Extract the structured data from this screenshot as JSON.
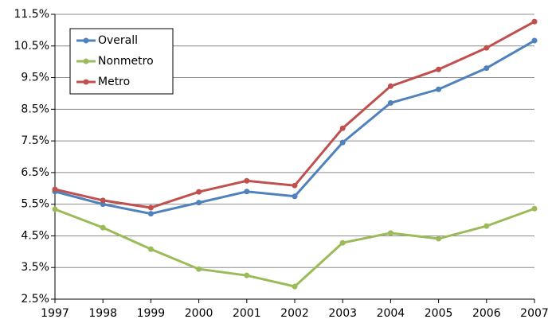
{
  "chart_data": {
    "type": "line",
    "x": [
      1997,
      1998,
      1999,
      2000,
      2001,
      2002,
      2003,
      2004,
      2005,
      2006,
      2007
    ],
    "xlim": [
      1997,
      2007
    ],
    "xticks": [
      1997,
      1998,
      1999,
      2000,
      2001,
      2002,
      2003,
      2004,
      2005,
      2006,
      2007
    ],
    "ylim": [
      2.5,
      11.5
    ],
    "yticks": [
      {
        "value": 2.5,
        "label": "2.5%"
      },
      {
        "value": 3.5,
        "label": "3.5%"
      },
      {
        "value": 4.5,
        "label": "4.5%"
      },
      {
        "value": 5.5,
        "label": "5.5%"
      },
      {
        "value": 6.5,
        "label": "6.5%"
      },
      {
        "value": 7.5,
        "label": "7.5%"
      },
      {
        "value": 8.5,
        "label": "8.5%"
      },
      {
        "value": 9.5,
        "label": "9.5%"
      },
      {
        "value": 10.5,
        "label": "10.5%"
      },
      {
        "value": 11.5,
        "label": "11.5%"
      }
    ],
    "grid": true,
    "legend": "upper-left",
    "series": [
      {
        "name": "Overall",
        "color": "#4f81bd",
        "values": [
          5.9,
          5.5,
          5.2,
          5.55,
          5.9,
          5.75,
          7.45,
          8.7,
          9.13,
          9.8,
          10.67
        ]
      },
      {
        "name": "Nonmetro",
        "color": "#9bbb59",
        "values": [
          5.34,
          4.76,
          4.08,
          3.45,
          3.25,
          2.9,
          4.28,
          4.59,
          4.41,
          4.81,
          5.36
        ]
      },
      {
        "name": "Metro",
        "color": "#c0504d",
        "values": [
          5.97,
          5.62,
          5.39,
          5.89,
          6.24,
          6.09,
          7.9,
          9.23,
          9.76,
          10.44,
          11.27
        ]
      }
    ]
  }
}
